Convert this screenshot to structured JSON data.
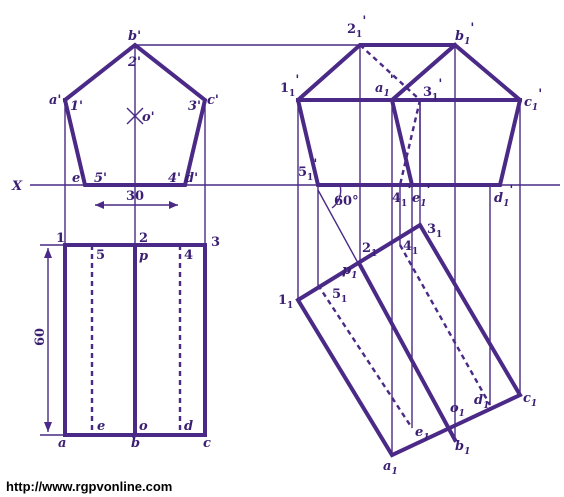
{
  "reference_line_label": "X",
  "dimensions": {
    "width": "30",
    "height": "60",
    "angle": "60°"
  },
  "front_view_labels": {
    "b": "b'",
    "two": "2'",
    "o": "o'",
    "a": "a'",
    "c": "c'",
    "one": "1'",
    "three": "3'",
    "e": "e'",
    "five": "5'",
    "four": "4'",
    "d": "d'"
  },
  "top_view_labels": {
    "one": "1",
    "two": "2",
    "three": "3",
    "five": "5",
    "p": "p",
    "four": "4",
    "a": "a",
    "e": "e",
    "b": "b",
    "o": "o",
    "d": "d",
    "c": "c"
  },
  "rotated_front_labels": {
    "two": "2",
    "b": "b",
    "one": "1",
    "a": "a",
    "three": "3",
    "c": "c",
    "five": "5",
    "four": "4",
    "e": "e",
    "d": "d"
  },
  "rotated_top_labels": {
    "two": "2",
    "p": "p",
    "four": "4",
    "three": "3",
    "one": "1",
    "five": "5",
    "o": "o",
    "d": "d",
    "c": "c",
    "e": "e",
    "b": "b",
    "a": "a"
  },
  "subscript": "1",
  "prime": "'",
  "watermark": "http://www.rgpvonline.com"
}
